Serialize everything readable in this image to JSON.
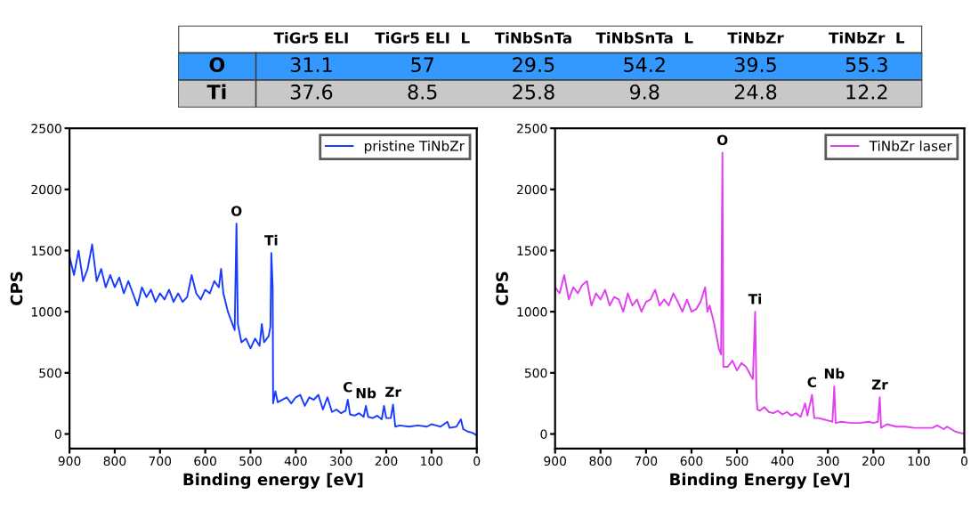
{
  "chart_data": [
    {
      "type": "other",
      "categories": [
        "TiGr5 ELI",
        "TiGr5 ELI  L",
        "TiNbSnTa",
        "TiNbSnTa  L",
        "TiNbZr",
        "TiNbZr  L"
      ],
      "data_labels": true,
      "series": [
        {
          "name": "O",
          "color": "#3399ff",
          "values": [
            31.1,
            57,
            29.5,
            54.2,
            39.5,
            55.3
          ]
        },
        {
          "name": "Ti",
          "color": "#c8c8c8",
          "values": [
            37.6,
            8.5,
            25.8,
            9.8,
            24.8,
            12.2
          ]
        }
      ]
    },
    {
      "type": "line",
      "xlabel": "Binding energy [eV]",
      "ylabel": "CPS",
      "xlim": [
        900,
        0
      ],
      "ylim": [
        -120,
        2500
      ],
      "xticks": [
        900,
        800,
        700,
        600,
        500,
        400,
        300,
        200,
        100,
        0
      ],
      "yticks": [
        0,
        500,
        1000,
        1500,
        2000,
        2500
      ],
      "legend": "top right",
      "grid": false,
      "annotations": [
        {
          "text": "O",
          "x": 531,
          "y": 1720
        },
        {
          "text": "Ti",
          "x": 454,
          "y": 1480
        },
        {
          "text": "C",
          "x": 285,
          "y": 280
        },
        {
          "text": "Nb",
          "x": 245,
          "y": 230
        },
        {
          "text": "Zr",
          "x": 185,
          "y": 240
        }
      ],
      "series": [
        {
          "name": "pristine TiNbZr",
          "color": "#1a3cff",
          "x": [
            900,
            890,
            880,
            870,
            860,
            850,
            840,
            830,
            820,
            810,
            800,
            790,
            780,
            770,
            760,
            750,
            740,
            730,
            720,
            710,
            700,
            690,
            680,
            670,
            660,
            650,
            640,
            630,
            620,
            610,
            600,
            590,
            580,
            570,
            565,
            560,
            550,
            540,
            535,
            531,
            528,
            520,
            510,
            500,
            490,
            480,
            475,
            470,
            460,
            456,
            454,
            451,
            450,
            445,
            440,
            430,
            420,
            410,
            400,
            390,
            380,
            370,
            360,
            350,
            340,
            330,
            320,
            310,
            300,
            290,
            285,
            280,
            270,
            260,
            250,
            245,
            240,
            230,
            220,
            210,
            205,
            200,
            190,
            185,
            180,
            170,
            150,
            130,
            110,
            100,
            90,
            80,
            65,
            60,
            45,
            35,
            30,
            20,
            10,
            0
          ],
          "values": [
            1450,
            1300,
            1500,
            1250,
            1350,
            1550,
            1250,
            1350,
            1200,
            1300,
            1200,
            1280,
            1150,
            1250,
            1150,
            1050,
            1200,
            1120,
            1180,
            1080,
            1150,
            1100,
            1180,
            1080,
            1150,
            1080,
            1120,
            1300,
            1150,
            1100,
            1180,
            1150,
            1250,
            1200,
            1350,
            1150,
            1000,
            900,
            850,
            1720,
            900,
            750,
            780,
            700,
            780,
            720,
            900,
            750,
            800,
            880,
            1480,
            1200,
            250,
            350,
            260,
            280,
            300,
            250,
            300,
            320,
            230,
            300,
            280,
            320,
            200,
            300,
            180,
            200,
            170,
            190,
            280,
            160,
            150,
            170,
            140,
            230,
            140,
            130,
            150,
            120,
            230,
            130,
            130,
            240,
            60,
            70,
            60,
            70,
            60,
            80,
            70,
            60,
            100,
            50,
            60,
            120,
            40,
            20,
            10,
            -10
          ]
        }
      ]
    },
    {
      "type": "line",
      "xlabel": "Binding Energy [eV]",
      "ylabel": "CPS",
      "xlim": [
        900,
        0
      ],
      "ylim": [
        -120,
        2500
      ],
      "xticks": [
        900,
        800,
        700,
        600,
        500,
        400,
        300,
        200,
        100,
        0
      ],
      "yticks": [
        0,
        500,
        1000,
        1500,
        2000,
        2500
      ],
      "legend": "top right",
      "grid": false,
      "annotations": [
        {
          "text": "O",
          "x": 532,
          "y": 2300
        },
        {
          "text": "Ti",
          "x": 460,
          "y": 1000
        },
        {
          "text": "C",
          "x": 335,
          "y": 320
        },
        {
          "text": "Nb",
          "x": 286,
          "y": 390
        },
        {
          "text": "Zr",
          "x": 186,
          "y": 300
        }
      ],
      "series": [
        {
          "name": "TiNbZr laser",
          "color": "#e040f0",
          "x": [
            900,
            890,
            880,
            870,
            860,
            850,
            840,
            830,
            820,
            810,
            800,
            790,
            780,
            770,
            760,
            750,
            740,
            730,
            720,
            710,
            700,
            690,
            680,
            670,
            660,
            650,
            640,
            630,
            620,
            610,
            600,
            590,
            580,
            570,
            565,
            560,
            550,
            540,
            535,
            532,
            530,
            520,
            510,
            500,
            490,
            480,
            470,
            465,
            460,
            457,
            455,
            450,
            440,
            430,
            420,
            410,
            400,
            390,
            380,
            370,
            360,
            350,
            345,
            335,
            330,
            320,
            310,
            300,
            290,
            286,
            283,
            270,
            250,
            230,
            210,
            200,
            190,
            186,
            183,
            170,
            150,
            130,
            110,
            90,
            70,
            60,
            45,
            38,
            20,
            10,
            0
          ],
          "values": [
            1200,
            1150,
            1300,
            1100,
            1200,
            1150,
            1220,
            1250,
            1050,
            1150,
            1100,
            1180,
            1050,
            1120,
            1100,
            1000,
            1150,
            1050,
            1100,
            1000,
            1080,
            1100,
            1180,
            1050,
            1100,
            1050,
            1150,
            1080,
            1000,
            1100,
            1000,
            1020,
            1080,
            1200,
            1000,
            1050,
            900,
            700,
            650,
            2300,
            550,
            550,
            600,
            520,
            580,
            550,
            480,
            450,
            1000,
            300,
            200,
            190,
            220,
            180,
            170,
            190,
            160,
            180,
            150,
            170,
            140,
            250,
            150,
            320,
            130,
            130,
            120,
            110,
            100,
            390,
            90,
            100,
            90,
            90,
            100,
            90,
            100,
            300,
            50,
            80,
            60,
            60,
            50,
            50,
            50,
            70,
            40,
            60,
            20,
            10,
            0
          ]
        }
      ]
    }
  ]
}
